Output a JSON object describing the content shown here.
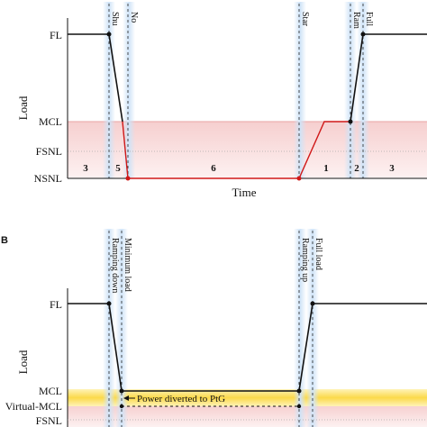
{
  "colors": {
    "band_pink": "#f6d3d3",
    "band_pink_light": "#fbe9e9",
    "band_yellow": "#fde785",
    "band_yellow_deep": "#f6cc2a",
    "line_red": "#d01818",
    "line_black": "#111111",
    "marker_blue": "#cfe3f7"
  },
  "panel_a": {
    "levels": [
      "FL",
      "MCL",
      "FSNL",
      "NSNL"
    ],
    "y_axis_title": "Load",
    "x_axis_title": "Time",
    "event_labels": [
      "Shu",
      "No",
      "Star",
      "Ram",
      "Full"
    ],
    "segment_labels": [
      "3",
      "5",
      "6",
      "1",
      "2",
      "3"
    ]
  },
  "panel_b": {
    "letter": "B",
    "levels": [
      "FL",
      "MCL",
      "Virtual-MCL",
      "FSNL"
    ],
    "y_axis_title": "Load",
    "event_labels": [
      "Ramping down",
      "Minimum load",
      "Ramping up",
      "Full load"
    ],
    "annotation": "Power diverted to PtG"
  }
}
